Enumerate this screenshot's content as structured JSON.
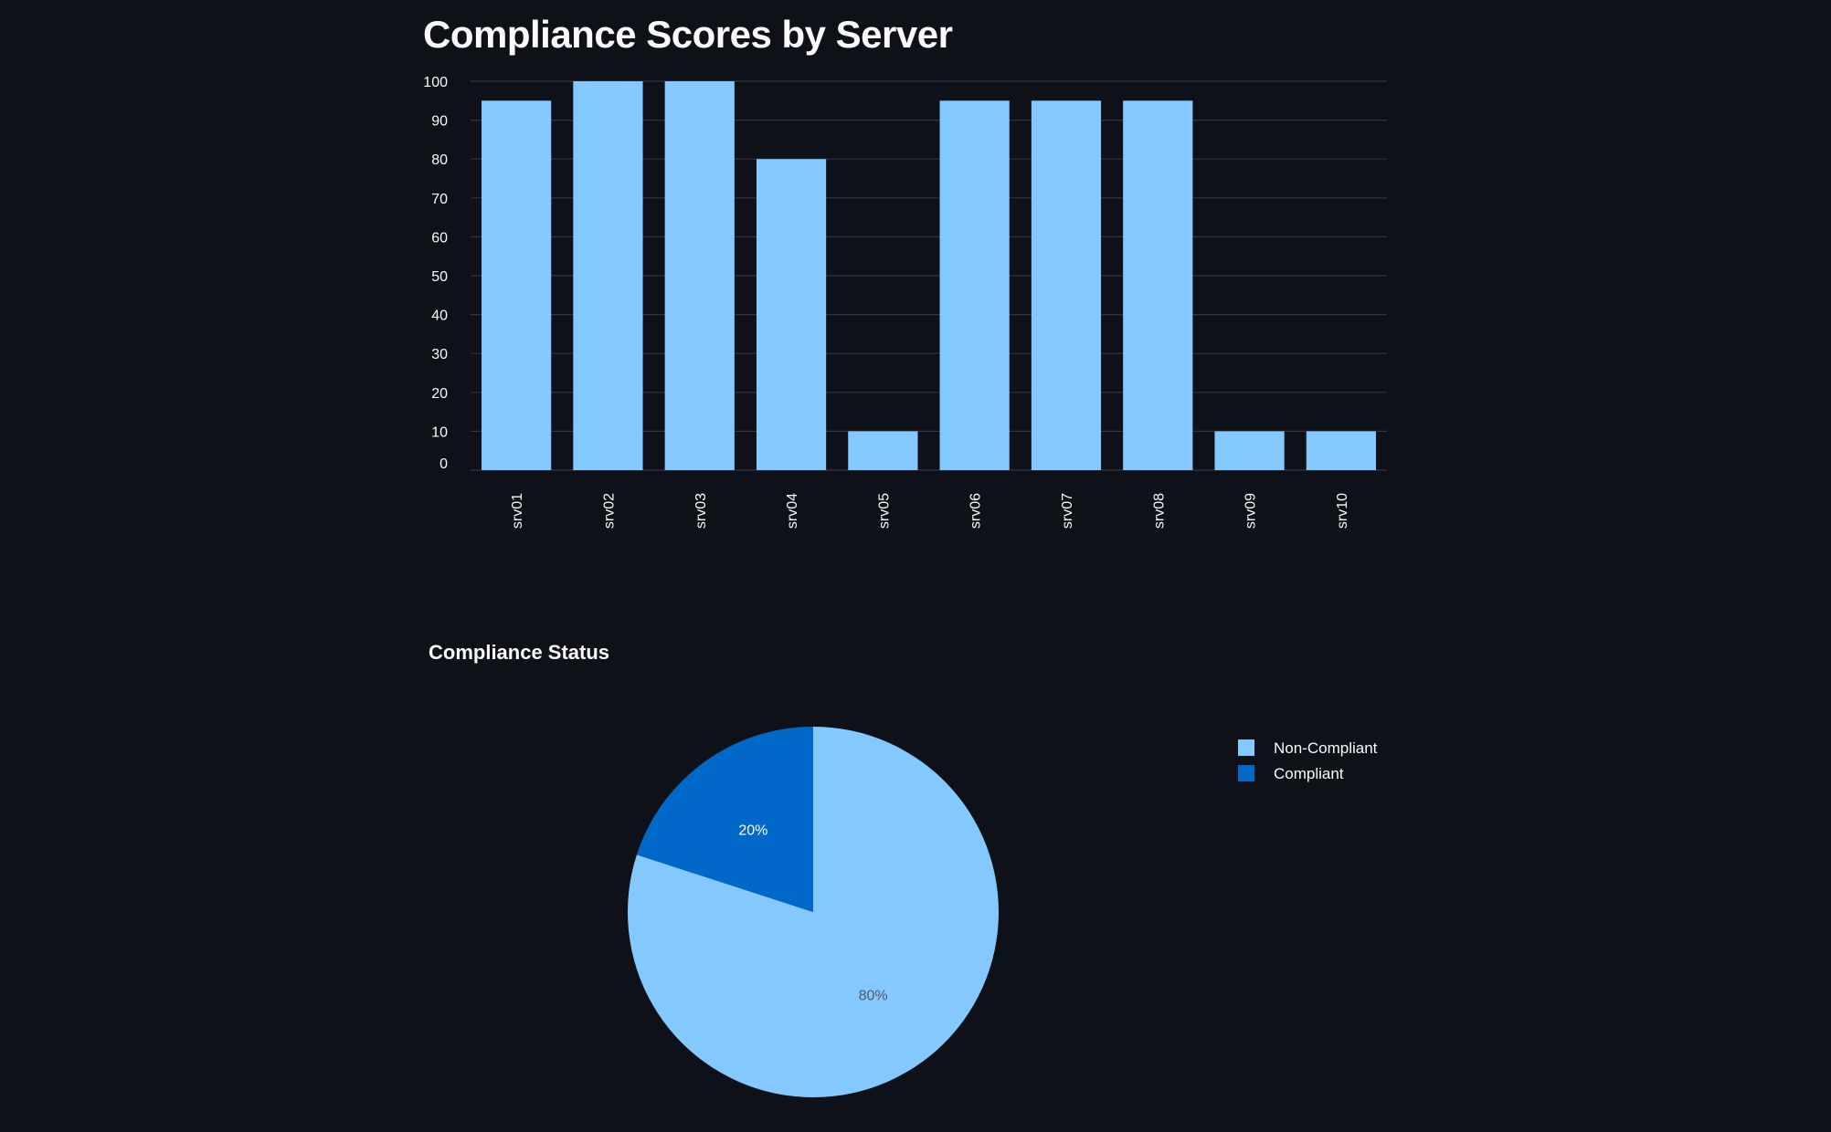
{
  "page": {
    "title": "Compliance Scores by Server"
  },
  "chart_data": [
    {
      "type": "bar",
      "title": "Compliance Scores by Server",
      "xlabel": "",
      "ylabel": "",
      "categories": [
        "srv01",
        "srv02",
        "srv03",
        "srv04",
        "srv05",
        "srv06",
        "srv07",
        "srv08",
        "srv09",
        "srv10"
      ],
      "values": [
        95,
        100,
        100,
        80,
        10,
        95,
        95,
        95,
        10,
        10
      ],
      "ylim": [
        0,
        100
      ],
      "yticks": [
        0,
        10,
        20,
        30,
        40,
        50,
        60,
        70,
        80,
        90,
        100
      ],
      "grid": true,
      "colors": {
        "bar": "#83c9ff",
        "grid": "#31333f",
        "text": "#fafafa"
      }
    },
    {
      "type": "pie",
      "title": "Compliance Status",
      "labels": [
        "Non-Compliant",
        "Compliant"
      ],
      "values": [
        80,
        20
      ],
      "slice_labels": [
        "80%",
        "20%"
      ],
      "legend": "top-right",
      "colors": {
        "slices": [
          "#83c9ff",
          "#0068c9"
        ],
        "label_on_light": "#555867",
        "label_on_dark": "#ffffff"
      }
    }
  ]
}
